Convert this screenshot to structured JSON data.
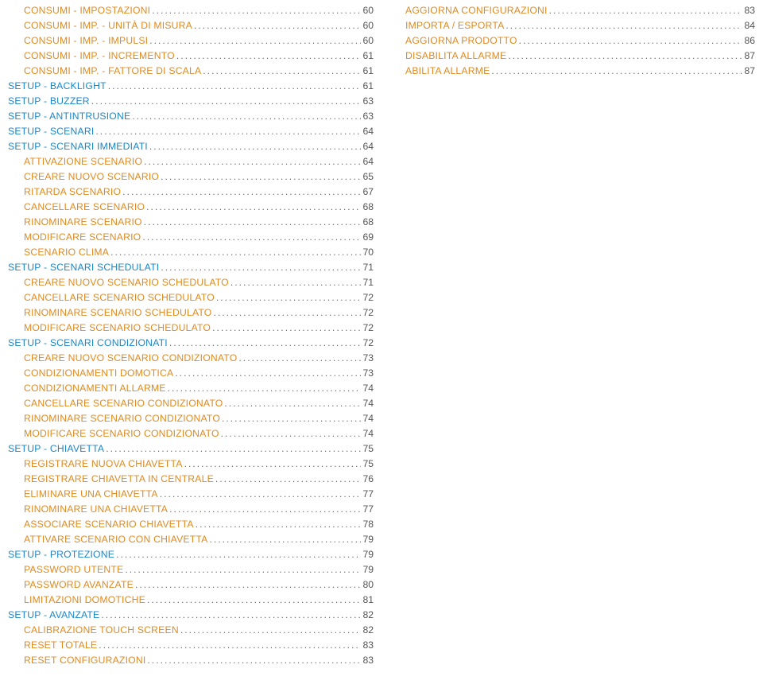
{
  "colors": {
    "section": "#1a87c9",
    "item": "#e08a1f",
    "leader": "#6a6a6a",
    "page": "#555555"
  },
  "leader_char": ".",
  "leader_repeat": 120,
  "columns": [
    [
      {
        "label": "CONSUMI - IMPOSTAZIONI",
        "page": "60",
        "level": "item",
        "indent": 1
      },
      {
        "label": "CONSUMI - IMP. - UNITÀ DI MISURA",
        "page": "60",
        "level": "item",
        "indent": 1
      },
      {
        "label": "CONSUMI - IMP. - IMPULSI",
        "page": "60",
        "level": "item",
        "indent": 1
      },
      {
        "label": "CONSUMI - IMP. - INCREMENTO",
        "page": "61",
        "level": "item",
        "indent": 1
      },
      {
        "label": "CONSUMI - IMP. - FATTORE DI SCALA",
        "page": "61",
        "level": "item",
        "indent": 1
      },
      {
        "label": "SETUP - BACKLIGHT",
        "page": "61",
        "level": "section",
        "indent": 0
      },
      {
        "label": "SETUP - BUZZER",
        "page": "63",
        "level": "section",
        "indent": 0
      },
      {
        "label": "SETUP - ANTINTRUSIONE",
        "page": "63",
        "level": "section",
        "indent": 0
      },
      {
        "label": "SETUP - SCENARI",
        "page": "64",
        "level": "section",
        "indent": 0
      },
      {
        "label": "SETUP - SCENARI IMMEDIATI",
        "page": "64",
        "level": "section",
        "indent": 0
      },
      {
        "label": "ATTIVAZIONE SCENARIO",
        "page": "64",
        "level": "item",
        "indent": 1
      },
      {
        "label": "CREARE NUOVO SCENARIO",
        "page": "65",
        "level": "item",
        "indent": 1
      },
      {
        "label": "RITARDA SCENARIO",
        "page": "67",
        "level": "item",
        "indent": 1
      },
      {
        "label": "CANCELLARE SCENARIO",
        "page": "68",
        "level": "item",
        "indent": 1
      },
      {
        "label": "RINOMINARE SCENARIO",
        "page": "68",
        "level": "item",
        "indent": 1
      },
      {
        "label": "MODIFICARE SCENARIO",
        "page": "69",
        "level": "item",
        "indent": 1
      },
      {
        "label": "SCENARIO CLIMA",
        "page": "70",
        "level": "item",
        "indent": 1
      },
      {
        "label": "SETUP - SCENARI SCHEDULATI",
        "page": "71",
        "level": "section",
        "indent": 0
      },
      {
        "label": "CREARE NUOVO SCENARIO SCHEDULATO",
        "page": "71",
        "level": "item",
        "indent": 1
      },
      {
        "label": "CANCELLARE SCENARIO SCHEDULATO",
        "page": "72",
        "level": "item",
        "indent": 1
      },
      {
        "label": "RINOMINARE SCENARIO SCHEDULATO",
        "page": "72",
        "level": "item",
        "indent": 1
      },
      {
        "label": "MODIFICARE SCENARIO SCHEDULATO",
        "page": "72",
        "level": "item",
        "indent": 1
      },
      {
        "label": "SETUP - SCENARI CONDIZIONATI",
        "page": "72",
        "level": "section",
        "indent": 0
      },
      {
        "label": "CREARE NUOVO SCENARIO CONDIZIONATO",
        "page": "73",
        "level": "item",
        "indent": 1
      },
      {
        "label": "CONDIZIONAMENTI DOMOTICA",
        "page": "73",
        "level": "item",
        "indent": 1
      },
      {
        "label": "CONDIZIONAMENTI ALLARME",
        "page": "74",
        "level": "item",
        "indent": 1
      },
      {
        "label": "CANCELLARE SCENARIO CONDIZIONATO",
        "page": "74",
        "level": "item",
        "indent": 1
      },
      {
        "label": "RINOMINARE SCENARIO CONDIZIONATO",
        "page": "74",
        "level": "item",
        "indent": 1
      },
      {
        "label": "MODIFICARE SCENARIO CONDIZIONATO",
        "page": "74",
        "level": "item",
        "indent": 1
      },
      {
        "label": "SETUP - CHIAVETTA",
        "page": "75",
        "level": "section",
        "indent": 0
      },
      {
        "label": "REGISTRARE NUOVA CHIAVETTA",
        "page": "75",
        "level": "item",
        "indent": 1
      },
      {
        "label": "REGISTRARE CHIAVETTA IN CENTRALE",
        "page": "76",
        "level": "item",
        "indent": 1
      },
      {
        "label": "ELIMINARE UNA CHIAVETTA",
        "page": "77",
        "level": "item",
        "indent": 1
      },
      {
        "label": "RINOMINARE UNA CHIAVETTA",
        "page": "77",
        "level": "item",
        "indent": 1
      },
      {
        "label": "ASSOCIARE SCENARIO CHIAVETTA",
        "page": "78",
        "level": "item",
        "indent": 1
      },
      {
        "label": "ATTIVARE SCENARIO CON CHIAVETTA",
        "page": "79",
        "level": "item",
        "indent": 1
      },
      {
        "label": "SETUP - PROTEZIONE",
        "page": "79",
        "level": "section",
        "indent": 0
      },
      {
        "label": "PASSWORD UTENTE",
        "page": "79",
        "level": "item",
        "indent": 1
      },
      {
        "label": "PASSWORD AVANZATE",
        "page": "80",
        "level": "item",
        "indent": 1
      },
      {
        "label": "LIMITAZIONI DOMOTICHE",
        "page": "81",
        "level": "item",
        "indent": 1
      },
      {
        "label": "SETUP - AVANZATE",
        "page": "82",
        "level": "section",
        "indent": 0
      },
      {
        "label": "CALIBRAZIONE TOUCH SCREEN",
        "page": "82",
        "level": "item",
        "indent": 1
      },
      {
        "label": "RESET TOTALE",
        "page": "83",
        "level": "item",
        "indent": 1
      },
      {
        "label": "RESET CONFIGURAZIONI",
        "page": "83",
        "level": "item",
        "indent": 1
      }
    ],
    [
      {
        "label": "AGGIORNA CONFIGURAZIONI",
        "page": "83",
        "level": "item",
        "indent": 1
      },
      {
        "label": "IMPORTA / ESPORTA",
        "page": "84",
        "level": "item",
        "indent": 1
      },
      {
        "label": "AGGIORNA PRODOTTO",
        "page": "86",
        "level": "item",
        "indent": 1
      },
      {
        "label": "DISABILITA ALLARME",
        "page": "87",
        "level": "item",
        "indent": 1
      },
      {
        "label": "ABILITA ALLARME",
        "page": "87",
        "level": "item",
        "indent": 1
      }
    ]
  ]
}
